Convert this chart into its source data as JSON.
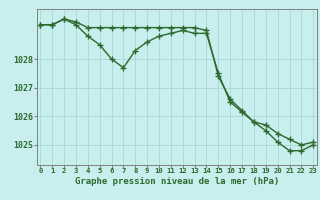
{
  "line1_y": [
    1029.2,
    1029.2,
    1029.4,
    1029.3,
    1029.1,
    1029.1,
    1029.1,
    1029.1,
    1029.1,
    1029.1,
    1029.1,
    1029.1,
    1029.1,
    1029.1,
    1029.0,
    1027.4,
    1026.6,
    1026.2,
    1025.8,
    1025.5,
    1025.1,
    1024.8,
    1024.8,
    1025.0
  ],
  "line2_y": [
    1029.2,
    1029.2,
    1029.4,
    1029.2,
    1028.8,
    1028.5,
    1028.0,
    1027.7,
    1028.3,
    1028.6,
    1028.8,
    1028.9,
    1029.0,
    1028.9,
    1028.9,
    1027.5,
    1026.5,
    1026.15,
    1025.8,
    1025.7,
    1025.4,
    1025.2,
    1025.0,
    1025.1
  ],
  "line_color": "#2d6a2d",
  "bg_color": "#c8eeee",
  "grid_color": "#a8d8d8",
  "xlabel": "Graphe pression niveau de la mer (hPa)",
  "xlabel_color": "#2d6a2d",
  "ylabel_ticks": [
    1025,
    1026,
    1027,
    1028
  ],
  "xtick_labels": [
    "0",
    "1",
    "2",
    "3",
    "4",
    "5",
    "6",
    "7",
    "8",
    "9",
    "10",
    "11",
    "12",
    "13",
    "14",
    "15",
    "16",
    "17",
    "18",
    "19",
    "20",
    "21",
    "22",
    "23"
  ],
  "ylim": [
    1024.3,
    1029.75
  ],
  "xlim": [
    -0.3,
    23.3
  ],
  "tick_color": "#2d6a2d",
  "spine_color": "#808080",
  "linewidth": 1.0,
  "markersize": 4.5
}
